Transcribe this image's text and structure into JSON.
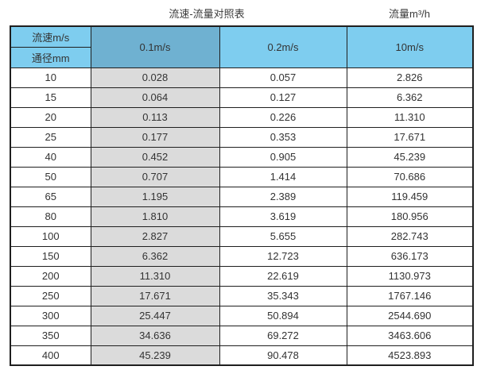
{
  "page": {
    "title": "流速-流量对照表",
    "unit_label": "流量m³/h"
  },
  "table": {
    "corner_top": "流速m/s",
    "corner_bottom": "通径mm",
    "velocity_headers": [
      "0.1m/s",
      "0.2m/s",
      "10m/s"
    ],
    "rows": [
      [
        "10",
        "0.028",
        "0.057",
        "2.826"
      ],
      [
        "15",
        "0.064",
        "0.127",
        "6.362"
      ],
      [
        "20",
        "0.113",
        "0.226",
        "11.310"
      ],
      [
        "25",
        "0.177",
        "0.353",
        "17.671"
      ],
      [
        "40",
        "0.452",
        "0.905",
        "45.239"
      ],
      [
        "50",
        "0.707",
        "1.414",
        "70.686"
      ],
      [
        "65",
        "1.195",
        "2.389",
        "119.459"
      ],
      [
        "80",
        "1.810",
        "3.619",
        "180.956"
      ],
      [
        "100",
        "2.827",
        "5.655",
        "282.743"
      ],
      [
        "150",
        "6.362",
        "12.723",
        "636.173"
      ],
      [
        "200",
        "11.310",
        "22.619",
        "1130.973"
      ],
      [
        "250",
        "17.671",
        "35.343",
        "1767.146"
      ],
      [
        "300",
        "25.447",
        "50.894",
        "2544.690"
      ],
      [
        "350",
        "34.636",
        "69.272",
        "3463.606"
      ],
      [
        "400",
        "45.239",
        "90.478",
        "4523.893"
      ]
    ]
  },
  "colors": {
    "header_blue_light": "#7ecdef",
    "header_blue_dark": "#6fb1d1",
    "column_shaded_gray": "#dbdbdb",
    "border": "#1f1f1f",
    "text": "#333333"
  },
  "chart_data": {
    "type": "table",
    "title": "流速-流量对照表",
    "units_note": "流量m³/h",
    "columns": [
      "通径mm",
      "0.1m/s",
      "0.2m/s",
      "10m/s"
    ],
    "row_header_label_top": "流速m/s",
    "row_header_label_bottom": "通径mm",
    "diameters_mm": [
      10,
      15,
      20,
      25,
      40,
      50,
      65,
      80,
      100,
      150,
      200,
      250,
      300,
      350,
      400
    ],
    "series": [
      {
        "name": "0.1m/s",
        "values": [
          0.028,
          0.064,
          0.113,
          0.177,
          0.452,
          0.707,
          1.195,
          1.81,
          2.827,
          6.362,
          11.31,
          17.671,
          25.447,
          34.636,
          45.239
        ]
      },
      {
        "name": "0.2m/s",
        "values": [
          0.057,
          0.127,
          0.226,
          0.353,
          0.905,
          1.414,
          2.389,
          3.619,
          5.655,
          12.723,
          22.619,
          35.343,
          50.894,
          69.272,
          90.478
        ]
      },
      {
        "name": "10m/s",
        "values": [
          2.826,
          6.362,
          11.31,
          17.671,
          45.239,
          70.686,
          119.459,
          180.956,
          282.743,
          636.173,
          1130.973,
          1767.146,
          2544.69,
          3463.606,
          4523.893
        ]
      }
    ]
  }
}
